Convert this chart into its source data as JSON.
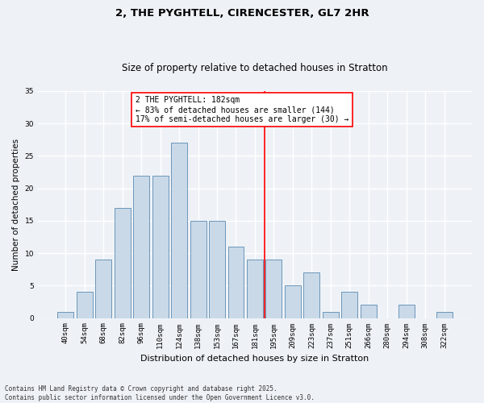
{
  "title": "2, THE PYGHTELL, CIRENCESTER, GL7 2HR",
  "subtitle": "Size of property relative to detached houses in Stratton",
  "xlabel": "Distribution of detached houses by size in Stratton",
  "ylabel": "Number of detached properties",
  "footnote": "Contains HM Land Registry data © Crown copyright and database right 2025.\nContains public sector information licensed under the Open Government Licence v3.0.",
  "bar_labels": [
    "40sqm",
    "54sqm",
    "68sqm",
    "82sqm",
    "96sqm",
    "110sqm",
    "124sqm",
    "138sqm",
    "153sqm",
    "167sqm",
    "181sqm",
    "195sqm",
    "209sqm",
    "223sqm",
    "237sqm",
    "251sqm",
    "266sqm",
    "280sqm",
    "294sqm",
    "308sqm",
    "322sqm"
  ],
  "bar_values": [
    1,
    4,
    9,
    17,
    22,
    22,
    27,
    15,
    15,
    11,
    9,
    9,
    5,
    7,
    1,
    4,
    2,
    0,
    2,
    0,
    1
  ],
  "bar_color": "#c9d9e8",
  "bar_edge_color": "#5b8ab0",
  "vline_color": "red",
  "vline_index": 10,
  "annotation_text": "2 THE PYGHTELL: 182sqm\n← 83% of detached houses are smaller (144)\n17% of semi-detached houses are larger (30) →",
  "annotation_box_color": "white",
  "annotation_box_edge_color": "red",
  "ylim": [
    0,
    35
  ],
  "yticks": [
    0,
    5,
    10,
    15,
    20,
    25,
    30,
    35
  ],
  "bg_color": "#eef2f7",
  "grid_color": "white",
  "title_fontsize": 9.5,
  "subtitle_fontsize": 8.5,
  "xlabel_fontsize": 8,
  "ylabel_fontsize": 7.5,
  "tick_fontsize": 6.5,
  "annot_fontsize": 7,
  "footnote_fontsize": 5.5
}
